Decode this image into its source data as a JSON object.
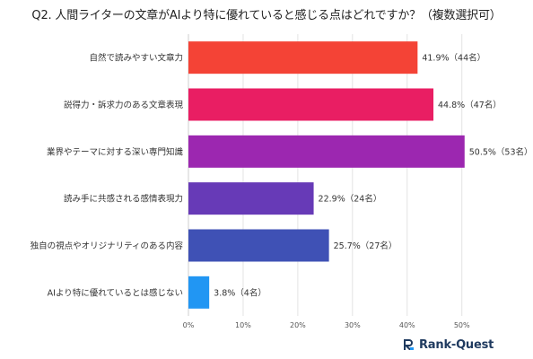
{
  "title": "Q2. 人間ライターの文章がAIより特に優れていると感じる点はどれですか？（複数選択可）",
  "brand": {
    "name": "Rank-Quest",
    "logo_icon": "rank-quest-logo-icon"
  },
  "chart_data": {
    "type": "bar",
    "orientation": "horizontal",
    "categories": [
      "自然で読みやすい文章力",
      "説得力・訴求力のある文章表現",
      "業界やテーマに対する深い専門知識",
      "読み手に共感される感情表現力",
      "独自の視点やオリジナリティのある内容",
      "AIより特に優れているとは感じない"
    ],
    "values": [
      41.9,
      44.8,
      50.5,
      22.9,
      25.7,
      3.8
    ],
    "data_labels": [
      "41.9%（44名）",
      "44.8%（47名）",
      "50.5%（53名）",
      "22.9%（24名）",
      "25.7%（27名）",
      "3.8%（4名）"
    ],
    "colors": [
      "#f44336",
      "#e91e63",
      "#9c27b0",
      "#673ab7",
      "#3f51b5",
      "#2196f3"
    ],
    "xlim": [
      0,
      53
    ],
    "xticks": [
      0,
      10,
      20,
      30,
      40,
      50
    ],
    "xtick_labels": [
      "0%",
      "10%",
      "20%",
      "30%",
      "40%",
      "50%"
    ],
    "grid": true
  }
}
